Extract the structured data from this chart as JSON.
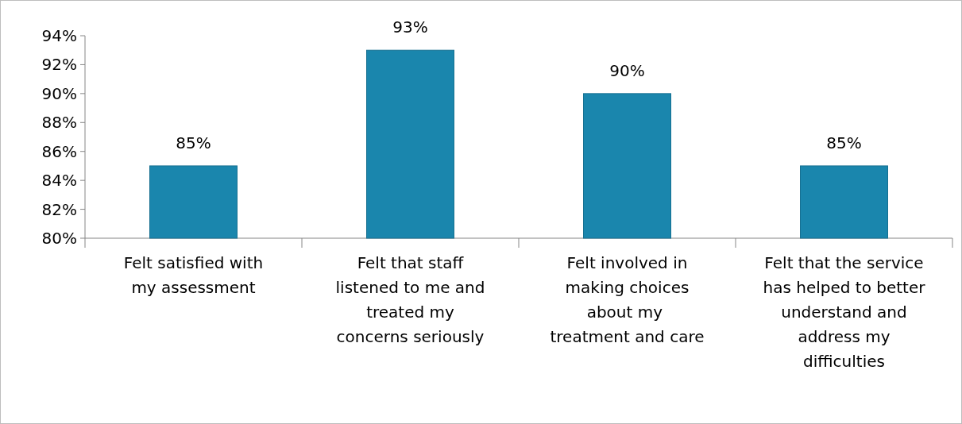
{
  "chart_data": {
    "type": "bar",
    "categories": [
      "Felt satisfied with my assessment",
      "Felt that staff listened to me and treated my concerns seriously",
      "Felt involved in making choices about my  treatment and care",
      "Felt that the service has helped to better understand and address my difficulties"
    ],
    "values": [
      85,
      93,
      90,
      85
    ],
    "color": "#1a86ad",
    "value_labels": [
      "85%",
      "93%",
      "90%",
      "85%"
    ],
    "ylim": [
      80,
      94
    ],
    "yticks": [
      {
        "value": 80,
        "label": "80%"
      },
      {
        "value": 82,
        "label": "82%"
      },
      {
        "value": 84,
        "label": "84%"
      },
      {
        "value": 86,
        "label": "86%"
      },
      {
        "value": 88,
        "label": "88%"
      },
      {
        "value": 90,
        "label": "90%"
      },
      {
        "value": 92,
        "label": "92%"
      },
      {
        "value": 94,
        "label": "94%"
      }
    ],
    "grid": false
  }
}
